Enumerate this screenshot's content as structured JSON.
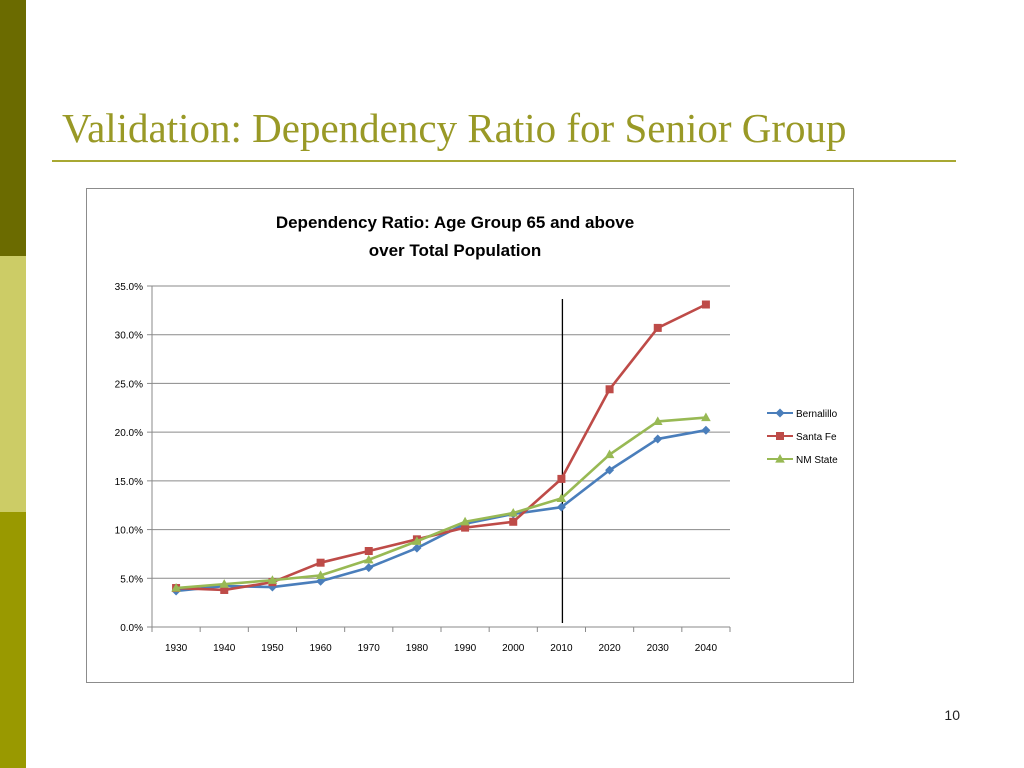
{
  "slide": {
    "title": "Validation: Dependency Ratio for Senior Group",
    "page_number": "10"
  },
  "chart_data": {
    "type": "line",
    "title_lines": [
      "Dependency Ratio: Age Group 65 and above",
      "over Total Population"
    ],
    "categories": [
      "1930",
      "1940",
      "1950",
      "1960",
      "1970",
      "1980",
      "1990",
      "2000",
      "2010",
      "2020",
      "2030",
      "2040"
    ],
    "ylim": [
      0,
      35
    ],
    "ytick_values": [
      0,
      5,
      10,
      15,
      20,
      25,
      30,
      35
    ],
    "ytick_labels": [
      "0.0%",
      "5.0%",
      "10.0%",
      "15.0%",
      "20.0%",
      "25.0%",
      "30.0%",
      "35.0%"
    ],
    "grid": true,
    "legend_position": "right",
    "vertical_marker_category": "2010",
    "series": [
      {
        "name": "Bernalillo",
        "color": "#4a7ebb",
        "marker": "diamond",
        "values": [
          3.7,
          4.2,
          4.1,
          4.7,
          6.1,
          8.1,
          10.6,
          11.6,
          12.3,
          16.1,
          19.3,
          20.2
        ]
      },
      {
        "name": "Santa Fe",
        "color": "#be4b48",
        "marker": "square",
        "values": [
          4.0,
          3.8,
          4.6,
          6.6,
          7.8,
          9.0,
          10.2,
          10.8,
          15.2,
          24.4,
          30.7,
          33.1
        ]
      },
      {
        "name": "NM State",
        "color": "#98b954",
        "marker": "triangle",
        "values": [
          4.0,
          4.4,
          4.8,
          5.3,
          6.9,
          8.8,
          10.8,
          11.7,
          13.2,
          17.7,
          21.1,
          21.5
        ]
      }
    ]
  }
}
